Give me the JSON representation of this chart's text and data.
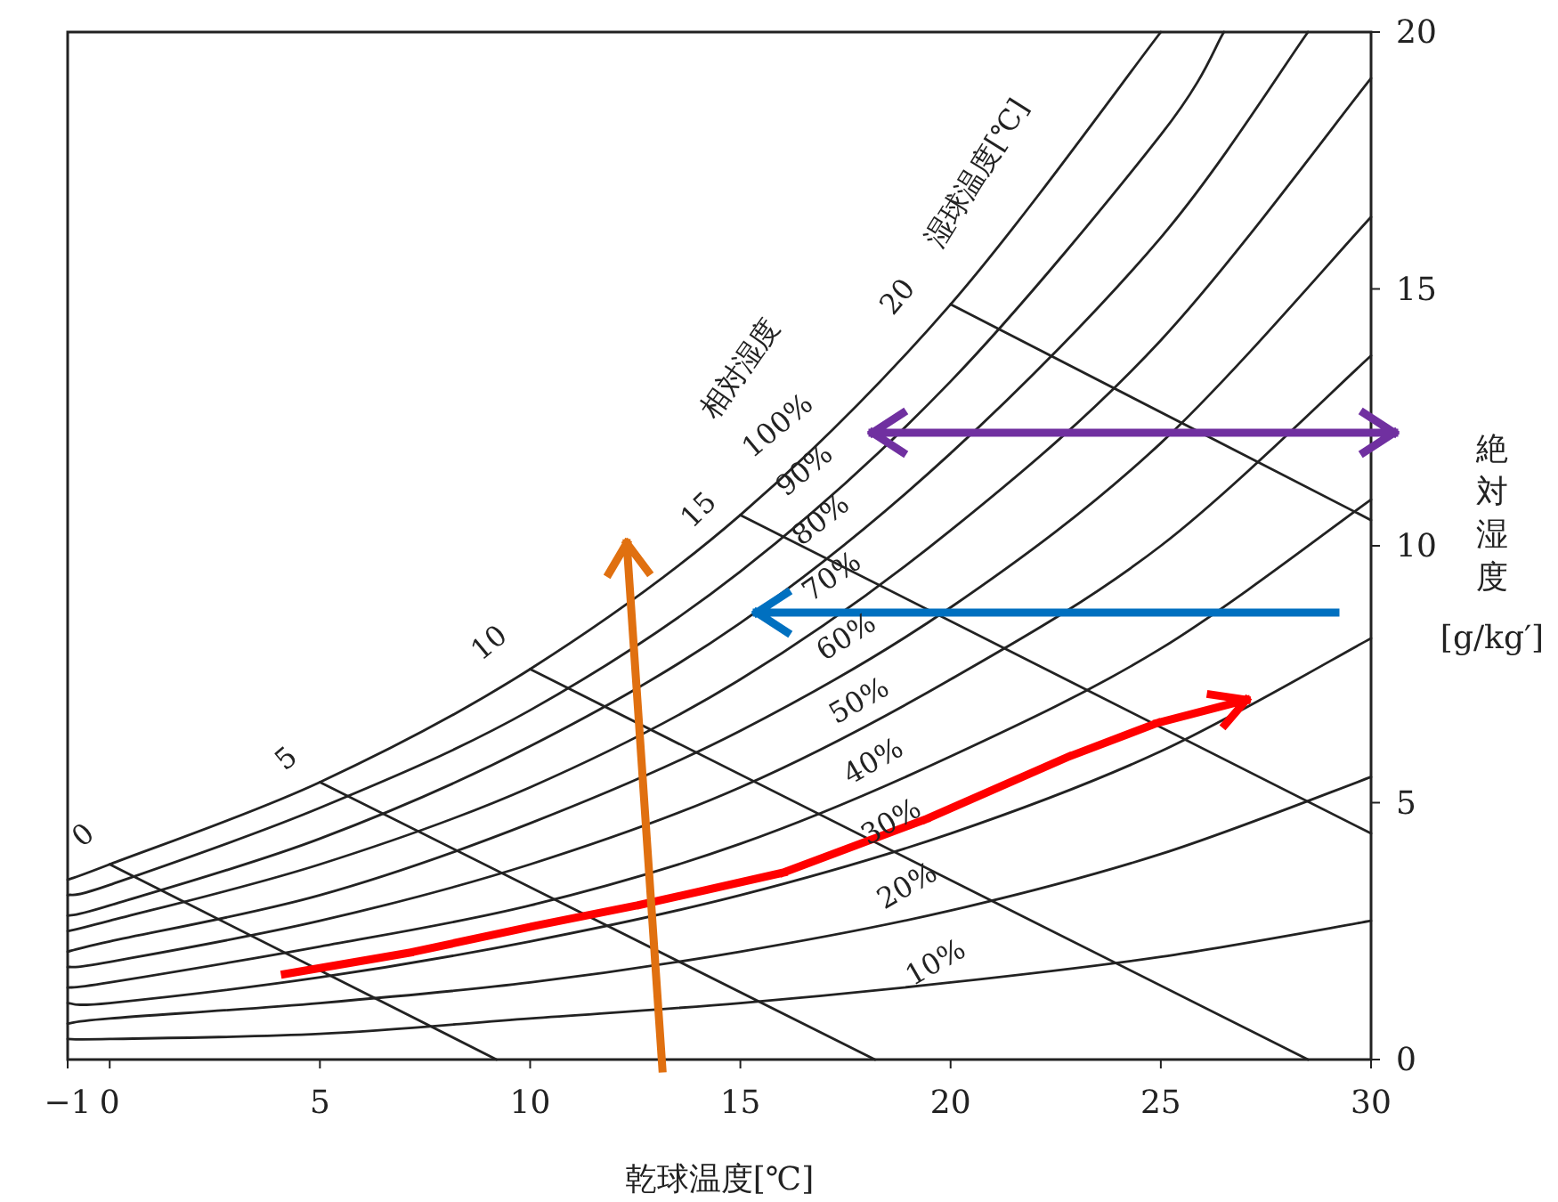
{
  "chart_data": {
    "type": "line",
    "xlabel": "乾球温度[℃]",
    "ylabel": "絶対湿度[g/kg′]",
    "xlim": [
      -1,
      30
    ],
    "ylim": [
      0,
      20
    ],
    "xticks": [
      {
        "value": -1,
        "label": "−1"
      },
      0,
      5,
      10,
      15,
      20,
      25,
      30
    ],
    "yticks": [
      0,
      5,
      10,
      15,
      20
    ],
    "grid": false,
    "series": [
      {
        "color": "#222222",
        "x": [
          -1,
          0,
          5,
          10,
          15,
          20,
          25,
          30
        ],
        "values": [
          0.4,
          0.4,
          0.5,
          0.8,
          1.1,
          1.5,
          2.0,
          2.7
        ]
      },
      {
        "color": "#222222",
        "x": [
          -1,
          0,
          5,
          10,
          15,
          20,
          25,
          30
        ],
        "values": [
          0.7,
          0.8,
          1.1,
          1.5,
          2.1,
          2.9,
          4.0,
          5.5
        ]
      },
      {
        "color": "#222222",
        "x": [
          -1,
          0,
          5,
          10,
          15,
          20,
          25,
          30
        ],
        "values": [
          1.1,
          1.1,
          1.6,
          2.3,
          3.2,
          4.4,
          6.0,
          8.2
        ]
      },
      {
        "color": "#222222",
        "x": [
          -1,
          0,
          5,
          10,
          15,
          20,
          25,
          30
        ],
        "values": [
          1.4,
          1.5,
          2.2,
          3.0,
          4.2,
          5.9,
          8.0,
          10.9
        ]
      },
      {
        "color": "#222222",
        "x": [
          -1,
          0,
          5,
          10,
          15,
          20,
          25,
          30
        ],
        "values": [
          1.8,
          1.9,
          2.7,
          3.8,
          5.3,
          7.4,
          10.0,
          13.7
        ]
      },
      {
        "color": "#222222",
        "x": [
          -1,
          0,
          5,
          10,
          15,
          20,
          25,
          30
        ],
        "values": [
          2.1,
          2.3,
          3.2,
          4.6,
          6.4,
          8.8,
          12.0,
          16.4
        ]
      },
      {
        "color": "#222222",
        "x": [
          -1,
          0,
          5,
          10,
          15,
          20,
          25,
          30
        ],
        "values": [
          2.5,
          2.7,
          3.8,
          5.3,
          7.4,
          10.3,
          14.0,
          19.1
        ]
      },
      {
        "color": "#222222",
        "x": [
          -1,
          0,
          5,
          10,
          15,
          20,
          25,
          28.5
        ],
        "values": [
          2.8,
          3.0,
          4.3,
          6.1,
          8.5,
          11.8,
          16.0,
          20.0
        ]
      },
      {
        "color": "#222222",
        "x": [
          -1,
          0,
          5,
          10,
          15,
          20,
          25,
          26.5
        ],
        "values": [
          3.2,
          3.4,
          4.9,
          6.8,
          9.5,
          13.2,
          18.0,
          20.0
        ]
      },
      {
        "color": "#222222",
        "x": [
          -1,
          0,
          5,
          10,
          15,
          20,
          25
        ],
        "values": [
          3.5,
          3.8,
          5.4,
          7.6,
          10.6,
          14.7,
          20.0
        ]
      },
      {
        "color": "#222222",
        "x": [
          0,
          9.2
        ],
        "values": [
          3.8,
          0
        ]
      },
      {
        "color": "#222222",
        "x": [
          5,
          18.2
        ],
        "values": [
          5.4,
          0
        ]
      },
      {
        "color": "#222222",
        "x": [
          10,
          28.5
        ],
        "values": [
          7.6,
          0
        ]
      },
      {
        "color": "#222222",
        "x": [
          15,
          30
        ],
        "values": [
          10.6,
          4.4
        ]
      },
      {
        "color": "#222222",
        "x": [
          20,
          30
        ],
        "values": [
          14.7,
          10.5
        ]
      }
    ],
    "annotations": [
      "10%",
      "20%",
      "30%",
      "40%",
      "50%",
      "60%",
      "70%",
      "80%",
      "90%",
      "100%",
      "相対湿度",
      "0",
      "5",
      "10",
      "15",
      "20",
      "湿球温度[℃]"
    ]
  }
}
